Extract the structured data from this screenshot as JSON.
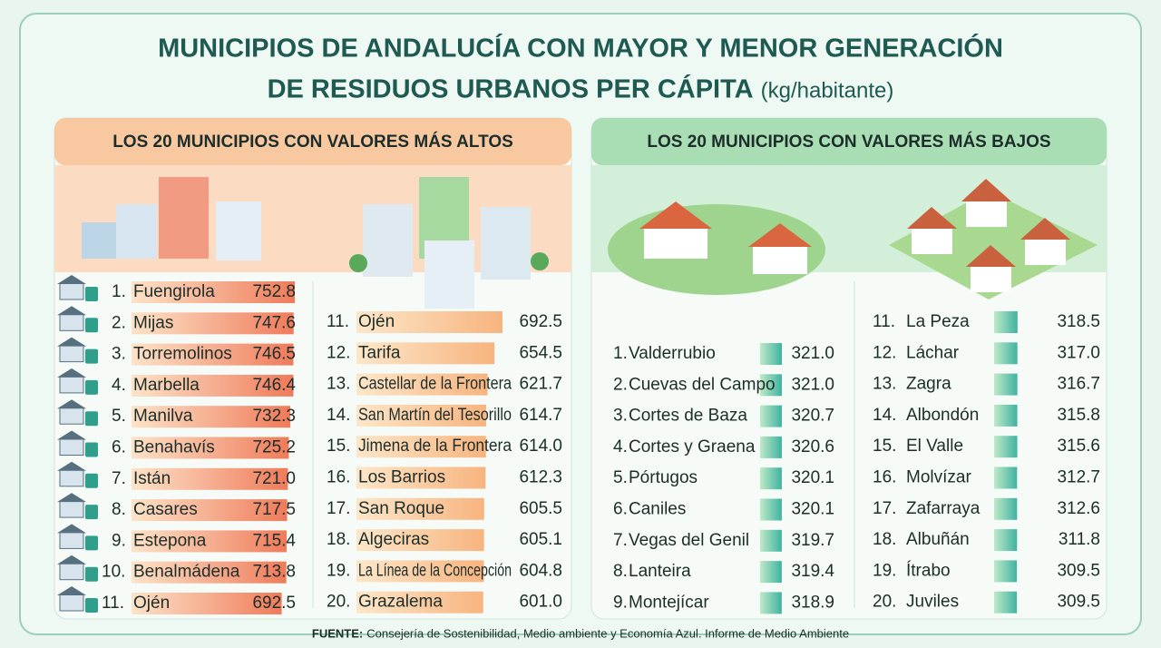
{
  "title_line1": "MUNICIPIOS DE ANDALUCÍA CON MAYOR Y MENOR GENERACIÓN",
  "title_line2": "DE RESIDUOS URBANOS PER CÁPITA",
  "unit": "(kg/habitante)",
  "panels": [
    {
      "heading": "LOS 20 MUNICIPIOS CON VALORES MÁS ALTOS",
      "columns": [
        [
          {
            "rank": "1.",
            "name": "Fuengirola",
            "value": 752.8,
            "label": "752.8"
          },
          {
            "rank": "2.",
            "name": "Mijas",
            "value": 747.6,
            "label": "747.6"
          },
          {
            "rank": "3.",
            "name": "Torremolinos",
            "value": 746.5,
            "label": "746.5"
          },
          {
            "rank": "4.",
            "name": "Marbella",
            "value": 746.4,
            "label": "746.4"
          },
          {
            "rank": "5.",
            "name": "Manilva",
            "value": 732.3,
            "label": "732.3"
          },
          {
            "rank": "6.",
            "name": "Benahavís",
            "value": 725.2,
            "label": "725.2"
          },
          {
            "rank": "7.",
            "name": "Istán",
            "value": 721.0,
            "label": "721.0"
          },
          {
            "rank": "8.",
            "name": "Casares",
            "value": 717.5,
            "label": "717.5"
          },
          {
            "rank": "9.",
            "name": "Estepona",
            "value": 715.4,
            "label": "715.4"
          },
          {
            "rank": "10.",
            "name": "Benalmádena",
            "value": 713.8,
            "label": "713.8"
          },
          {
            "rank": "11.",
            "name": "Ojén",
            "value": 692.5,
            "label": "692.5"
          }
        ],
        [
          {
            "rank": "11.",
            "name": "Ojén",
            "value": 692.5,
            "label": "692.5"
          },
          {
            "rank": "12.",
            "name": "Tarifa",
            "value": 654.5,
            "label": "654.5"
          },
          {
            "rank": "13.",
            "name": "Castellar de la Frontera",
            "value": 621.7,
            "label": "621.7"
          },
          {
            "rank": "14.",
            "name": "San Martín del Tesorillo",
            "value": 614.7,
            "label": "614.7"
          },
          {
            "rank": "15.",
            "name": "Jimena de la Frontera",
            "value": 614.0,
            "label": "614.0"
          },
          {
            "rank": "16.",
            "name": "Los Barrios",
            "value": 612.3,
            "label": "612.3"
          },
          {
            "rank": "17.",
            "name": "San Roque",
            "value": 605.5,
            "label": "605.5"
          },
          {
            "rank": "18.",
            "name": "Algeciras",
            "value": 605.1,
            "label": "605.1"
          },
          {
            "rank": "19.",
            "name": "La Línea de la Concepción",
            "value": 604.8,
            "label": "604.8"
          },
          {
            "rank": "20.",
            "name": "Grazalema",
            "value": 601.0,
            "label": "601.0"
          }
        ]
      ]
    },
    {
      "heading": "LOS 20 MUNICIPIOS CON VALORES MÁS BAJOS",
      "columns": [
        [
          {
            "rank": "1.",
            "name": "Valderrubio",
            "value": 321.0,
            "label": "321.0"
          },
          {
            "rank": "2.",
            "name": "Cuevas del Campo",
            "value": 321.0,
            "label": "321.0"
          },
          {
            "rank": "3.",
            "name": "Cortes de Baza",
            "value": 320.7,
            "label": "320.7"
          },
          {
            "rank": "4.",
            "name": "Cortes y Graena",
            "value": 320.6,
            "label": "320.6"
          },
          {
            "rank": "5.",
            "name": "Pórtugos",
            "value": 320.1,
            "label": "320.1"
          },
          {
            "rank": "6.",
            "name": "Caniles",
            "value": 320.1,
            "label": "320.1"
          },
          {
            "rank": "7.",
            "name": "Vegas del Genil",
            "value": 319.7,
            "label": "319.7"
          },
          {
            "rank": "8.",
            "name": "Lanteira",
            "value": 319.4,
            "label": "319.4"
          },
          {
            "rank": "9.",
            "name": "Montejícar",
            "value": 318.9,
            "label": "318.9"
          }
        ],
        [
          {
            "rank": "11.",
            "name": "La Peza",
            "value": 318.5,
            "label": "318.5"
          },
          {
            "rank": "12.",
            "name": "Láchar",
            "value": 317.0,
            "label": "317.0"
          },
          {
            "rank": "13.",
            "name": "Zagra",
            "value": 316.7,
            "label": "316.7"
          },
          {
            "rank": "14.",
            "name": "Albondón",
            "value": 315.8,
            "label": "315.8"
          },
          {
            "rank": "15.",
            "name": "El Valle",
            "value": 315.6,
            "label": "315.6"
          },
          {
            "rank": "16.",
            "name": "Molvízar",
            "value": 312.7,
            "label": "312.7"
          },
          {
            "rank": "17.",
            "name": "Zafarraya",
            "value": 312.6,
            "label": "312.6"
          },
          {
            "rank": "18.",
            "name": "Albuñán",
            "value": 311.8,
            "label": "311.8"
          },
          {
            "rank": "19.",
            "name": "Ítrabo",
            "value": 309.5,
            "label": "309.5"
          },
          {
            "rank": "20.",
            "name": "Juviles",
            "value": 309.5,
            "label": "309.5"
          }
        ]
      ]
    }
  ],
  "source_label": "FUENTE:",
  "source": "Consejería de Sostenibilidad, Medio ambiente y Economía Azul. Informe de Medio Ambiente"
}
